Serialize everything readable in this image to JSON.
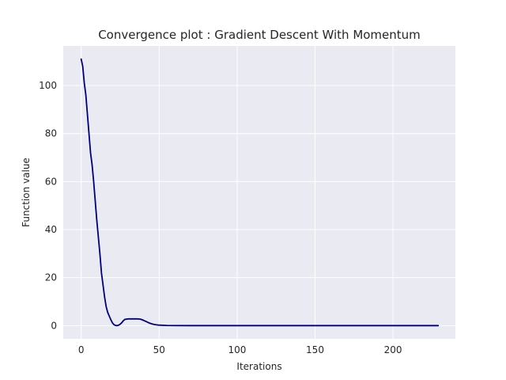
{
  "chart_data": {
    "type": "line",
    "title": "Convergence plot : Gradient Descent With Momentum",
    "xlabel": "Iterations",
    "ylabel": "Function value",
    "xlim": [
      -11.5,
      240
    ],
    "ylim": [
      -5.5,
      116.5
    ],
    "xticks": [
      0,
      50,
      100,
      150,
      200
    ],
    "yticks": [
      0,
      20,
      40,
      60,
      80,
      100
    ],
    "grid": true,
    "background": "#eaeaf2",
    "grid_color": "#ffffff",
    "series": [
      {
        "color": "#000080",
        "x": [
          0,
          1,
          2,
          3,
          4,
          5,
          6,
          7,
          8,
          9,
          10,
          11,
          12,
          13,
          14,
          15,
          16,
          17,
          18,
          19,
          20,
          21,
          22,
          23,
          24,
          25,
          26,
          27,
          28,
          30,
          32,
          34,
          36,
          38,
          40,
          42,
          44,
          46,
          48,
          50,
          55,
          60,
          70,
          80,
          100,
          150,
          200,
          229
        ],
        "y": [
          111,
          108,
          101,
          96,
          88,
          80,
          72,
          67,
          60,
          52,
          44,
          37,
          30,
          22,
          17,
          12,
          8,
          5.5,
          4,
          2.5,
          1.2,
          0.4,
          0.1,
          0,
          0.2,
          0.6,
          1.2,
          2,
          2.6,
          2.8,
          2.8,
          2.8,
          2.8,
          2.7,
          2.2,
          1.6,
          1.0,
          0.6,
          0.35,
          0.2,
          0.06,
          0.02,
          0,
          0,
          0,
          0,
          0,
          0
        ]
      }
    ]
  }
}
